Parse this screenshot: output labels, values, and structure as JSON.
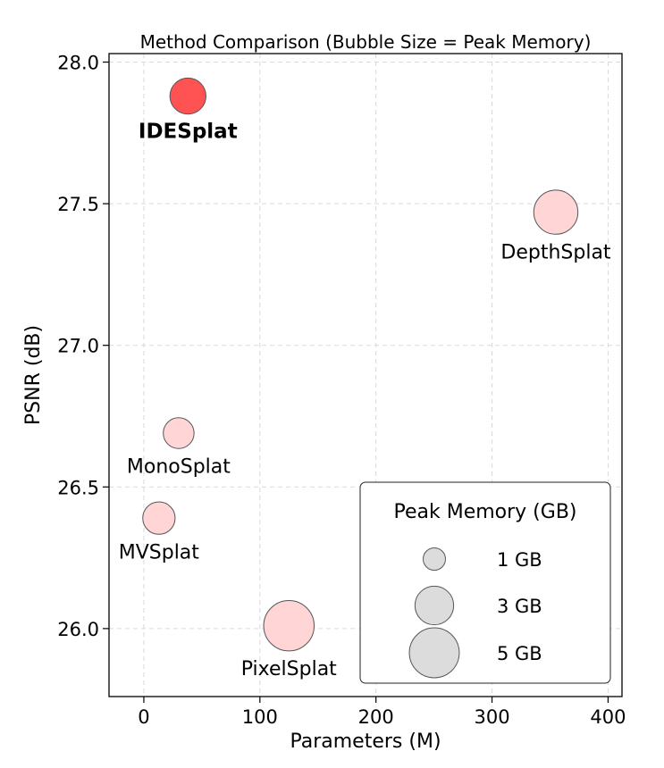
{
  "chart_data": {
    "type": "scatter",
    "title": "Method Comparison (Bubble Size = Peak Memory)",
    "xlabel": "Parameters (M)",
    "ylabel": "PSNR (dB)",
    "xlim": [
      -30,
      412
    ],
    "ylim": [
      25.76,
      28.03
    ],
    "xticks": [
      0,
      100,
      200,
      300,
      400
    ],
    "yticks": [
      26.0,
      26.5,
      27.0,
      27.5,
      28.0
    ],
    "ytick_labels": [
      "26.0",
      "26.5",
      "27.0",
      "27.5",
      "28.0"
    ],
    "grid": true,
    "points": [
      {
        "name": "IDESplat",
        "x": 38,
        "y": 27.88,
        "memory_gb": 2.6,
        "highlight": true,
        "label_pos": "below"
      },
      {
        "name": "DepthSplat",
        "x": 355,
        "y": 27.47,
        "memory_gb": 3.9,
        "highlight": false,
        "label_pos": "below"
      },
      {
        "name": "MonoSplat",
        "x": 30,
        "y": 26.69,
        "memory_gb": 1.9,
        "highlight": false,
        "label_pos": "below"
      },
      {
        "name": "MVSplat",
        "x": 13,
        "y": 26.39,
        "memory_gb": 2.1,
        "highlight": false,
        "label_pos": "below"
      },
      {
        "name": "PixelSplat",
        "x": 125,
        "y": 26.01,
        "memory_gb": 5.1,
        "highlight": false,
        "label_pos": "below"
      }
    ],
    "legend": {
      "title": "Peak Memory (GB)",
      "placement": "bottom-right",
      "entries": [
        {
          "label": "1 GB",
          "memory_gb": 1
        },
        {
          "label": "3 GB",
          "memory_gb": 3
        },
        {
          "label": "5 GB",
          "memory_gb": 5
        }
      ]
    },
    "colors": {
      "highlight_fill": "#ff4a4a",
      "normal_fill": "#ffd3d3",
      "legend_fill": "#dcdcdc",
      "edge": "#555555"
    }
  }
}
